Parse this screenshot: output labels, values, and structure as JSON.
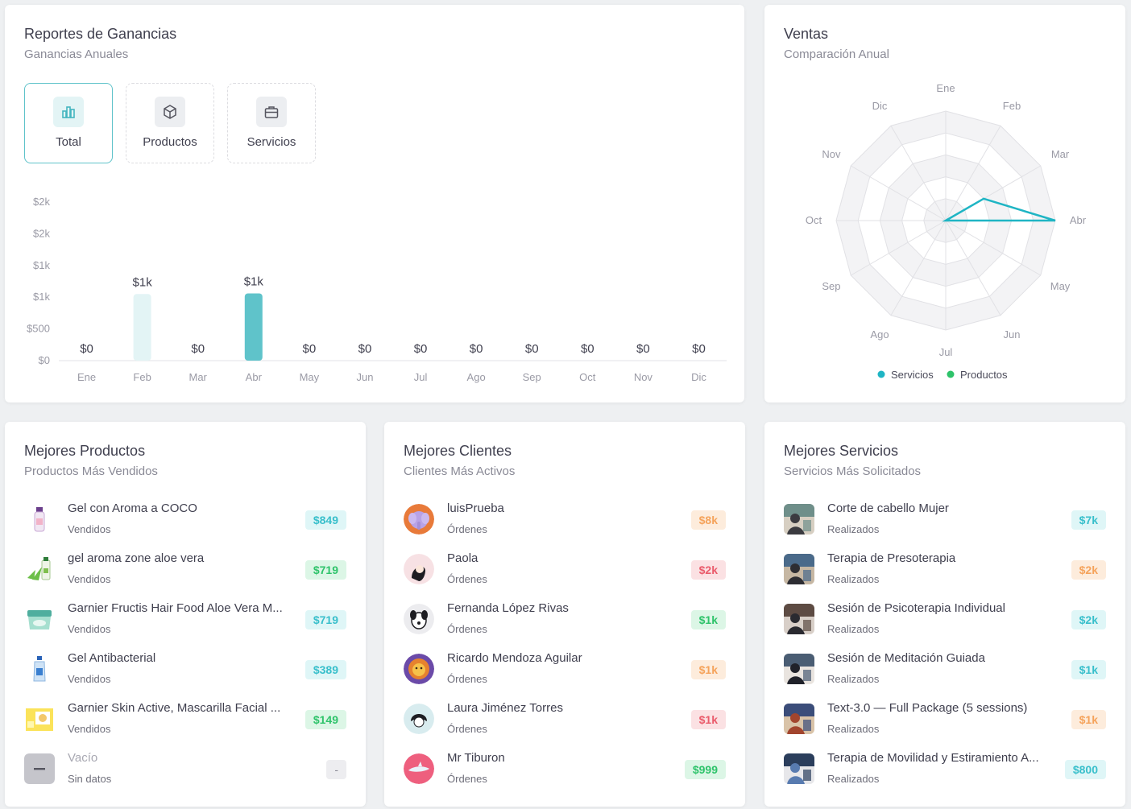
{
  "earnings": {
    "title": "Reportes de Ganancias",
    "subtitle": "Ganancias Anuales",
    "tabs": [
      {
        "label": "Total",
        "icon": "bar-chart-icon"
      },
      {
        "label": "Productos",
        "icon": "box-icon"
      },
      {
        "label": "Servicios",
        "icon": "briefcase-icon"
      }
    ]
  },
  "chart_data": [
    {
      "type": "bar",
      "title": "Reportes de Ganancias",
      "subtitle": "Ganancias Anuales",
      "categories": [
        "Ene",
        "Feb",
        "Mar",
        "Abr",
        "May",
        "Jun",
        "Jul",
        "Ago",
        "Sep",
        "Oct",
        "Nov",
        "Dic"
      ],
      "values": [
        0,
        1050,
        0,
        1060,
        0,
        0,
        0,
        0,
        0,
        0,
        0,
        0
      ],
      "data_labels": [
        "$0",
        "$1k",
        "$0",
        "$1k",
        "$0",
        "$0",
        "$0",
        "$0",
        "$0",
        "$0",
        "$0",
        "$0"
      ],
      "ytick_labels": [
        "$0",
        "$500",
        "$1k",
        "$1k",
        "$2k",
        "$2k"
      ],
      "ylim": [
        0,
        2500
      ],
      "bar_colors": {
        "Feb": "#e3f4f5",
        "Abr": "#5fc3ca"
      },
      "grid": false
    },
    {
      "type": "radar",
      "title": "Ventas",
      "subtitle": "Comparación Anual",
      "categories": [
        "Ene",
        "Feb",
        "Mar",
        "Abr",
        "May",
        "Jun",
        "Jul",
        "Ago",
        "Sep",
        "Oct",
        "Nov",
        "Dic"
      ],
      "series": [
        {
          "name": "Servicios",
          "color": "#1fb5c4",
          "values": [
            0,
            0,
            0.8,
            2,
            0,
            0,
            0,
            0,
            0,
            0,
            0,
            0
          ]
        },
        {
          "name": "Productos",
          "color": "#2ec36a",
          "values": [
            0,
            0,
            0,
            0,
            0,
            0,
            0,
            0,
            0,
            0,
            0,
            0
          ]
        }
      ],
      "rmax": 2,
      "legend": "bottom"
    }
  ],
  "sales": {
    "title": "Ventas",
    "subtitle": "Comparación Anual"
  },
  "products": {
    "title": "Mejores Productos",
    "subtitle": "Productos Más Vendidos",
    "items": [
      {
        "name": "Gel con Aroma a COCO",
        "sub": "Vendidos",
        "amount": "$849",
        "badge": "teal",
        "icon": "gel-bottle-icon"
      },
      {
        "name": "gel aroma zone aloe vera",
        "sub": "Vendidos",
        "amount": "$719",
        "badge": "green",
        "icon": "aloe-gel-icon"
      },
      {
        "name": "Garnier Fructis Hair Food Aloe Vera M...",
        "sub": "Vendidos",
        "amount": "$719",
        "badge": "teal",
        "icon": "hair-mask-jar-icon"
      },
      {
        "name": "Gel Antibacterial",
        "sub": "Vendidos",
        "amount": "$389",
        "badge": "teal",
        "icon": "sanitizer-bottle-icon"
      },
      {
        "name": "Garnier Skin Active, Mascarilla Facial ...",
        "sub": "Vendidos",
        "amount": "$149",
        "badge": "green",
        "icon": "face-mask-pack-icon"
      },
      {
        "name": "Vacío",
        "sub": "Sin datos",
        "amount": "-",
        "badge": "grey",
        "icon": "empty-icon"
      }
    ]
  },
  "clients": {
    "title": "Mejores Clientes",
    "subtitle": "Clientes Más Activos",
    "items": [
      {
        "name": "luisPrueba",
        "sub": "Órdenes",
        "amount": "$8k",
        "badge": "orange",
        "icon": "elephant-avatar-icon"
      },
      {
        "name": "Paola",
        "sub": "Órdenes",
        "amount": "$2k",
        "badge": "red",
        "icon": "woman-avatar-icon"
      },
      {
        "name": "Fernanda López Rivas",
        "sub": "Órdenes",
        "amount": "$1k",
        "badge": "green",
        "icon": "dog-avatar-icon"
      },
      {
        "name": "Ricardo Mendoza Aguilar",
        "sub": "Órdenes",
        "amount": "$1k",
        "badge": "orange",
        "icon": "lion-avatar-icon"
      },
      {
        "name": "Laura Jiménez Torres",
        "sub": "Órdenes",
        "amount": "$1k",
        "badge": "red",
        "icon": "girl-avatar-icon"
      },
      {
        "name": "Mr Tiburon",
        "sub": "Órdenes",
        "amount": "$999",
        "badge": "green",
        "icon": "shark-avatar-icon"
      }
    ]
  },
  "services": {
    "title": "Mejores Servicios",
    "subtitle": "Servicios Más Solicitados",
    "items": [
      {
        "name": "Corte de cabello Mujer",
        "sub": "Realizados",
        "amount": "$7k",
        "badge": "teal",
        "icon": "haircut-photo-icon"
      },
      {
        "name": "Terapia de Presoterapia",
        "sub": "Realizados",
        "amount": "$2k",
        "badge": "orange",
        "icon": "pressotherapy-photo-icon"
      },
      {
        "name": "Sesión de Psicoterapia Individual",
        "sub": "Realizados",
        "amount": "$2k",
        "badge": "teal",
        "icon": "therapy-photo-icon"
      },
      {
        "name": "Sesión de Meditación Guiada",
        "sub": "Realizados",
        "amount": "$1k",
        "badge": "teal",
        "icon": "meditation-photo-icon"
      },
      {
        "name": "Text-3.0 — Full Package (5 sessions)",
        "sub": "Realizados",
        "amount": "$1k",
        "badge": "orange",
        "icon": "package-photo-icon"
      },
      {
        "name": "Terapia de Movilidad y Estiramiento A...",
        "sub": "Realizados",
        "amount": "$800",
        "badge": "teal",
        "icon": "stretching-photo-icon"
      }
    ]
  }
}
